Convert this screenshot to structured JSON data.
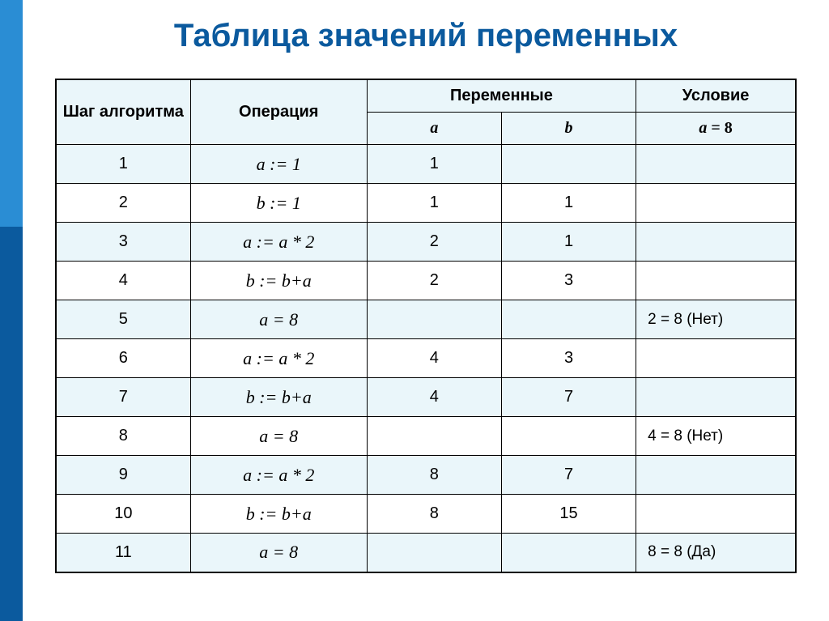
{
  "title": "Таблица значений переменных",
  "colors": {
    "title": "#0b5a9e",
    "header_bg": "#eaf6fa",
    "row_alt_bg": "#eaf6fa",
    "row_white_bg": "#ffffff",
    "border": "#000000",
    "leftbar_top": "#2a8dd4",
    "leftbar_bottom": "#0b5a9e"
  },
  "table": {
    "headers": {
      "step": "Шаг алгоритма",
      "operation": "Операция",
      "variables": "Переменные",
      "condition": "Условие",
      "var_a": "a",
      "var_b": "b",
      "cond_sub": "a = 8"
    },
    "rows": [
      {
        "step": "1",
        "op": "a := 1",
        "a": "1",
        "b": "",
        "cond": ""
      },
      {
        "step": "2",
        "op": "b := 1",
        "a": "1",
        "b": "1",
        "cond": ""
      },
      {
        "step": "3",
        "op": "a := a * 2",
        "a": "2",
        "b": "1",
        "cond": ""
      },
      {
        "step": "4",
        "op": "b := b+a",
        "a": "2",
        "b": "3",
        "cond": ""
      },
      {
        "step": "5",
        "op": "a = 8",
        "a": "",
        "b": "",
        "cond": "2 = 8 (Нет)"
      },
      {
        "step": "6",
        "op": "a := a * 2",
        "a": "4",
        "b": "3",
        "cond": ""
      },
      {
        "step": "7",
        "op": "b := b+a",
        "a": "4",
        "b": "7",
        "cond": ""
      },
      {
        "step": "8",
        "op": "a = 8",
        "a": "",
        "b": "",
        "cond": "4 = 8 (Нет)"
      },
      {
        "step": "9",
        "op": "a := a * 2",
        "a": "8",
        "b": "7",
        "cond": ""
      },
      {
        "step": "10",
        "op": "b := b+a",
        "a": "8",
        "b": "15",
        "cond": ""
      },
      {
        "step": "11",
        "op": "a = 8",
        "a": "",
        "b": "",
        "cond": "8 = 8 (Да)"
      }
    ]
  }
}
